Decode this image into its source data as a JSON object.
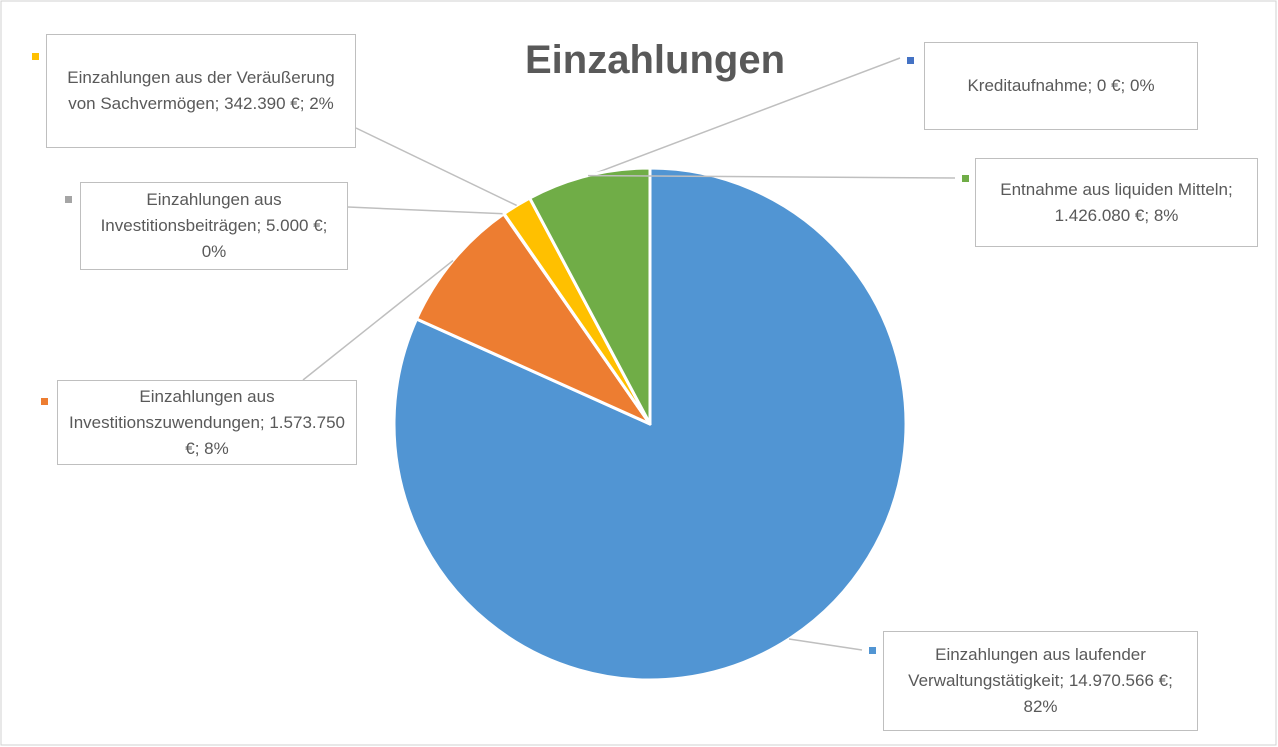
{
  "chart_data": {
    "type": "pie",
    "title": "Einzahlungen",
    "values": [
      14970566,
      1573750,
      5000,
      342390,
      0,
      1426080
    ],
    "data_labels": [
      "Einzahlungen aus laufender Verwaltungstätigkeit; 14.970.566 €; 82%",
      "Einzahlungen aus Investitionszuwendungen; 1.573.750 €; 8%",
      "Einzahlungen aus Investitionsbeiträgen; 5.000 €; 0%",
      "Einzahlungen aus der Veräußerung von Sachvermögen; 342.390 €; 2%",
      "Kreditaufnahme; 0 €; 0%",
      "Entnahme aus liquiden Mitteln; 1.426.080 €; 8%"
    ],
    "colors": [
      "#5195d3",
      "#ed7d31",
      "#a5a5a5",
      "#ffc000",
      "#4472c4",
      "#70ad47"
    ]
  }
}
